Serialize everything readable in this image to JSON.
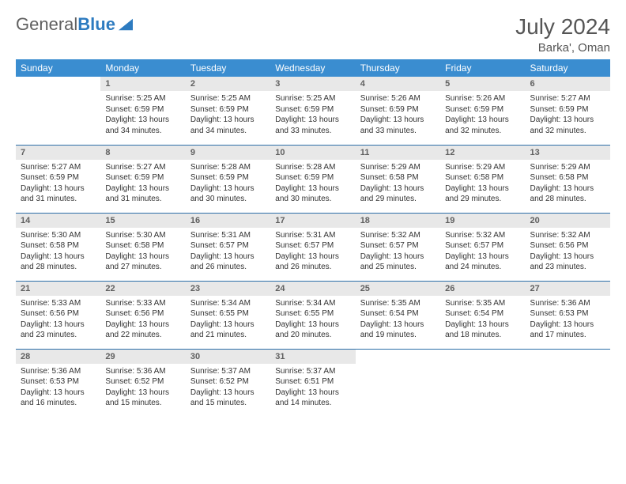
{
  "brand": {
    "part1": "General",
    "part2": "Blue"
  },
  "title": "July 2024",
  "location": "Barka', Oman",
  "colors": {
    "header_bg": "#3a8dd0",
    "header_text": "#ffffff",
    "row_divider": "#2d6fa8",
    "daynum_bg": "#e8e8e8",
    "daynum_text": "#606060",
    "body_text": "#333333",
    "brand_gray": "#606060",
    "brand_blue": "#2d7bc0"
  },
  "weekdays": [
    "Sunday",
    "Monday",
    "Tuesday",
    "Wednesday",
    "Thursday",
    "Friday",
    "Saturday"
  ],
  "weeks": [
    [
      {
        "n": "",
        "sr": "",
        "ss": "",
        "dl": ""
      },
      {
        "n": "1",
        "sr": "5:25 AM",
        "ss": "6:59 PM",
        "dl": "13 hours and 34 minutes."
      },
      {
        "n": "2",
        "sr": "5:25 AM",
        "ss": "6:59 PM",
        "dl": "13 hours and 34 minutes."
      },
      {
        "n": "3",
        "sr": "5:25 AM",
        "ss": "6:59 PM",
        "dl": "13 hours and 33 minutes."
      },
      {
        "n": "4",
        "sr": "5:26 AM",
        "ss": "6:59 PM",
        "dl": "13 hours and 33 minutes."
      },
      {
        "n": "5",
        "sr": "5:26 AM",
        "ss": "6:59 PM",
        "dl": "13 hours and 32 minutes."
      },
      {
        "n": "6",
        "sr": "5:27 AM",
        "ss": "6:59 PM",
        "dl": "13 hours and 32 minutes."
      }
    ],
    [
      {
        "n": "7",
        "sr": "5:27 AM",
        "ss": "6:59 PM",
        "dl": "13 hours and 31 minutes."
      },
      {
        "n": "8",
        "sr": "5:27 AM",
        "ss": "6:59 PM",
        "dl": "13 hours and 31 minutes."
      },
      {
        "n": "9",
        "sr": "5:28 AM",
        "ss": "6:59 PM",
        "dl": "13 hours and 30 minutes."
      },
      {
        "n": "10",
        "sr": "5:28 AM",
        "ss": "6:59 PM",
        "dl": "13 hours and 30 minutes."
      },
      {
        "n": "11",
        "sr": "5:29 AM",
        "ss": "6:58 PM",
        "dl": "13 hours and 29 minutes."
      },
      {
        "n": "12",
        "sr": "5:29 AM",
        "ss": "6:58 PM",
        "dl": "13 hours and 29 minutes."
      },
      {
        "n": "13",
        "sr": "5:29 AM",
        "ss": "6:58 PM",
        "dl": "13 hours and 28 minutes."
      }
    ],
    [
      {
        "n": "14",
        "sr": "5:30 AM",
        "ss": "6:58 PM",
        "dl": "13 hours and 28 minutes."
      },
      {
        "n": "15",
        "sr": "5:30 AM",
        "ss": "6:58 PM",
        "dl": "13 hours and 27 minutes."
      },
      {
        "n": "16",
        "sr": "5:31 AM",
        "ss": "6:57 PM",
        "dl": "13 hours and 26 minutes."
      },
      {
        "n": "17",
        "sr": "5:31 AM",
        "ss": "6:57 PM",
        "dl": "13 hours and 26 minutes."
      },
      {
        "n": "18",
        "sr": "5:32 AM",
        "ss": "6:57 PM",
        "dl": "13 hours and 25 minutes."
      },
      {
        "n": "19",
        "sr": "5:32 AM",
        "ss": "6:57 PM",
        "dl": "13 hours and 24 minutes."
      },
      {
        "n": "20",
        "sr": "5:32 AM",
        "ss": "6:56 PM",
        "dl": "13 hours and 23 minutes."
      }
    ],
    [
      {
        "n": "21",
        "sr": "5:33 AM",
        "ss": "6:56 PM",
        "dl": "13 hours and 23 minutes."
      },
      {
        "n": "22",
        "sr": "5:33 AM",
        "ss": "6:56 PM",
        "dl": "13 hours and 22 minutes."
      },
      {
        "n": "23",
        "sr": "5:34 AM",
        "ss": "6:55 PM",
        "dl": "13 hours and 21 minutes."
      },
      {
        "n": "24",
        "sr": "5:34 AM",
        "ss": "6:55 PM",
        "dl": "13 hours and 20 minutes."
      },
      {
        "n": "25",
        "sr": "5:35 AM",
        "ss": "6:54 PM",
        "dl": "13 hours and 19 minutes."
      },
      {
        "n": "26",
        "sr": "5:35 AM",
        "ss": "6:54 PM",
        "dl": "13 hours and 18 minutes."
      },
      {
        "n": "27",
        "sr": "5:36 AM",
        "ss": "6:53 PM",
        "dl": "13 hours and 17 minutes."
      }
    ],
    [
      {
        "n": "28",
        "sr": "5:36 AM",
        "ss": "6:53 PM",
        "dl": "13 hours and 16 minutes."
      },
      {
        "n": "29",
        "sr": "5:36 AM",
        "ss": "6:52 PM",
        "dl": "13 hours and 15 minutes."
      },
      {
        "n": "30",
        "sr": "5:37 AM",
        "ss": "6:52 PM",
        "dl": "13 hours and 15 minutes."
      },
      {
        "n": "31",
        "sr": "5:37 AM",
        "ss": "6:51 PM",
        "dl": "13 hours and 14 minutes."
      },
      {
        "n": "",
        "sr": "",
        "ss": "",
        "dl": ""
      },
      {
        "n": "",
        "sr": "",
        "ss": "",
        "dl": ""
      },
      {
        "n": "",
        "sr": "",
        "ss": "",
        "dl": ""
      }
    ]
  ],
  "labels": {
    "sunrise": "Sunrise:",
    "sunset": "Sunset:",
    "daylight": "Daylight:"
  }
}
